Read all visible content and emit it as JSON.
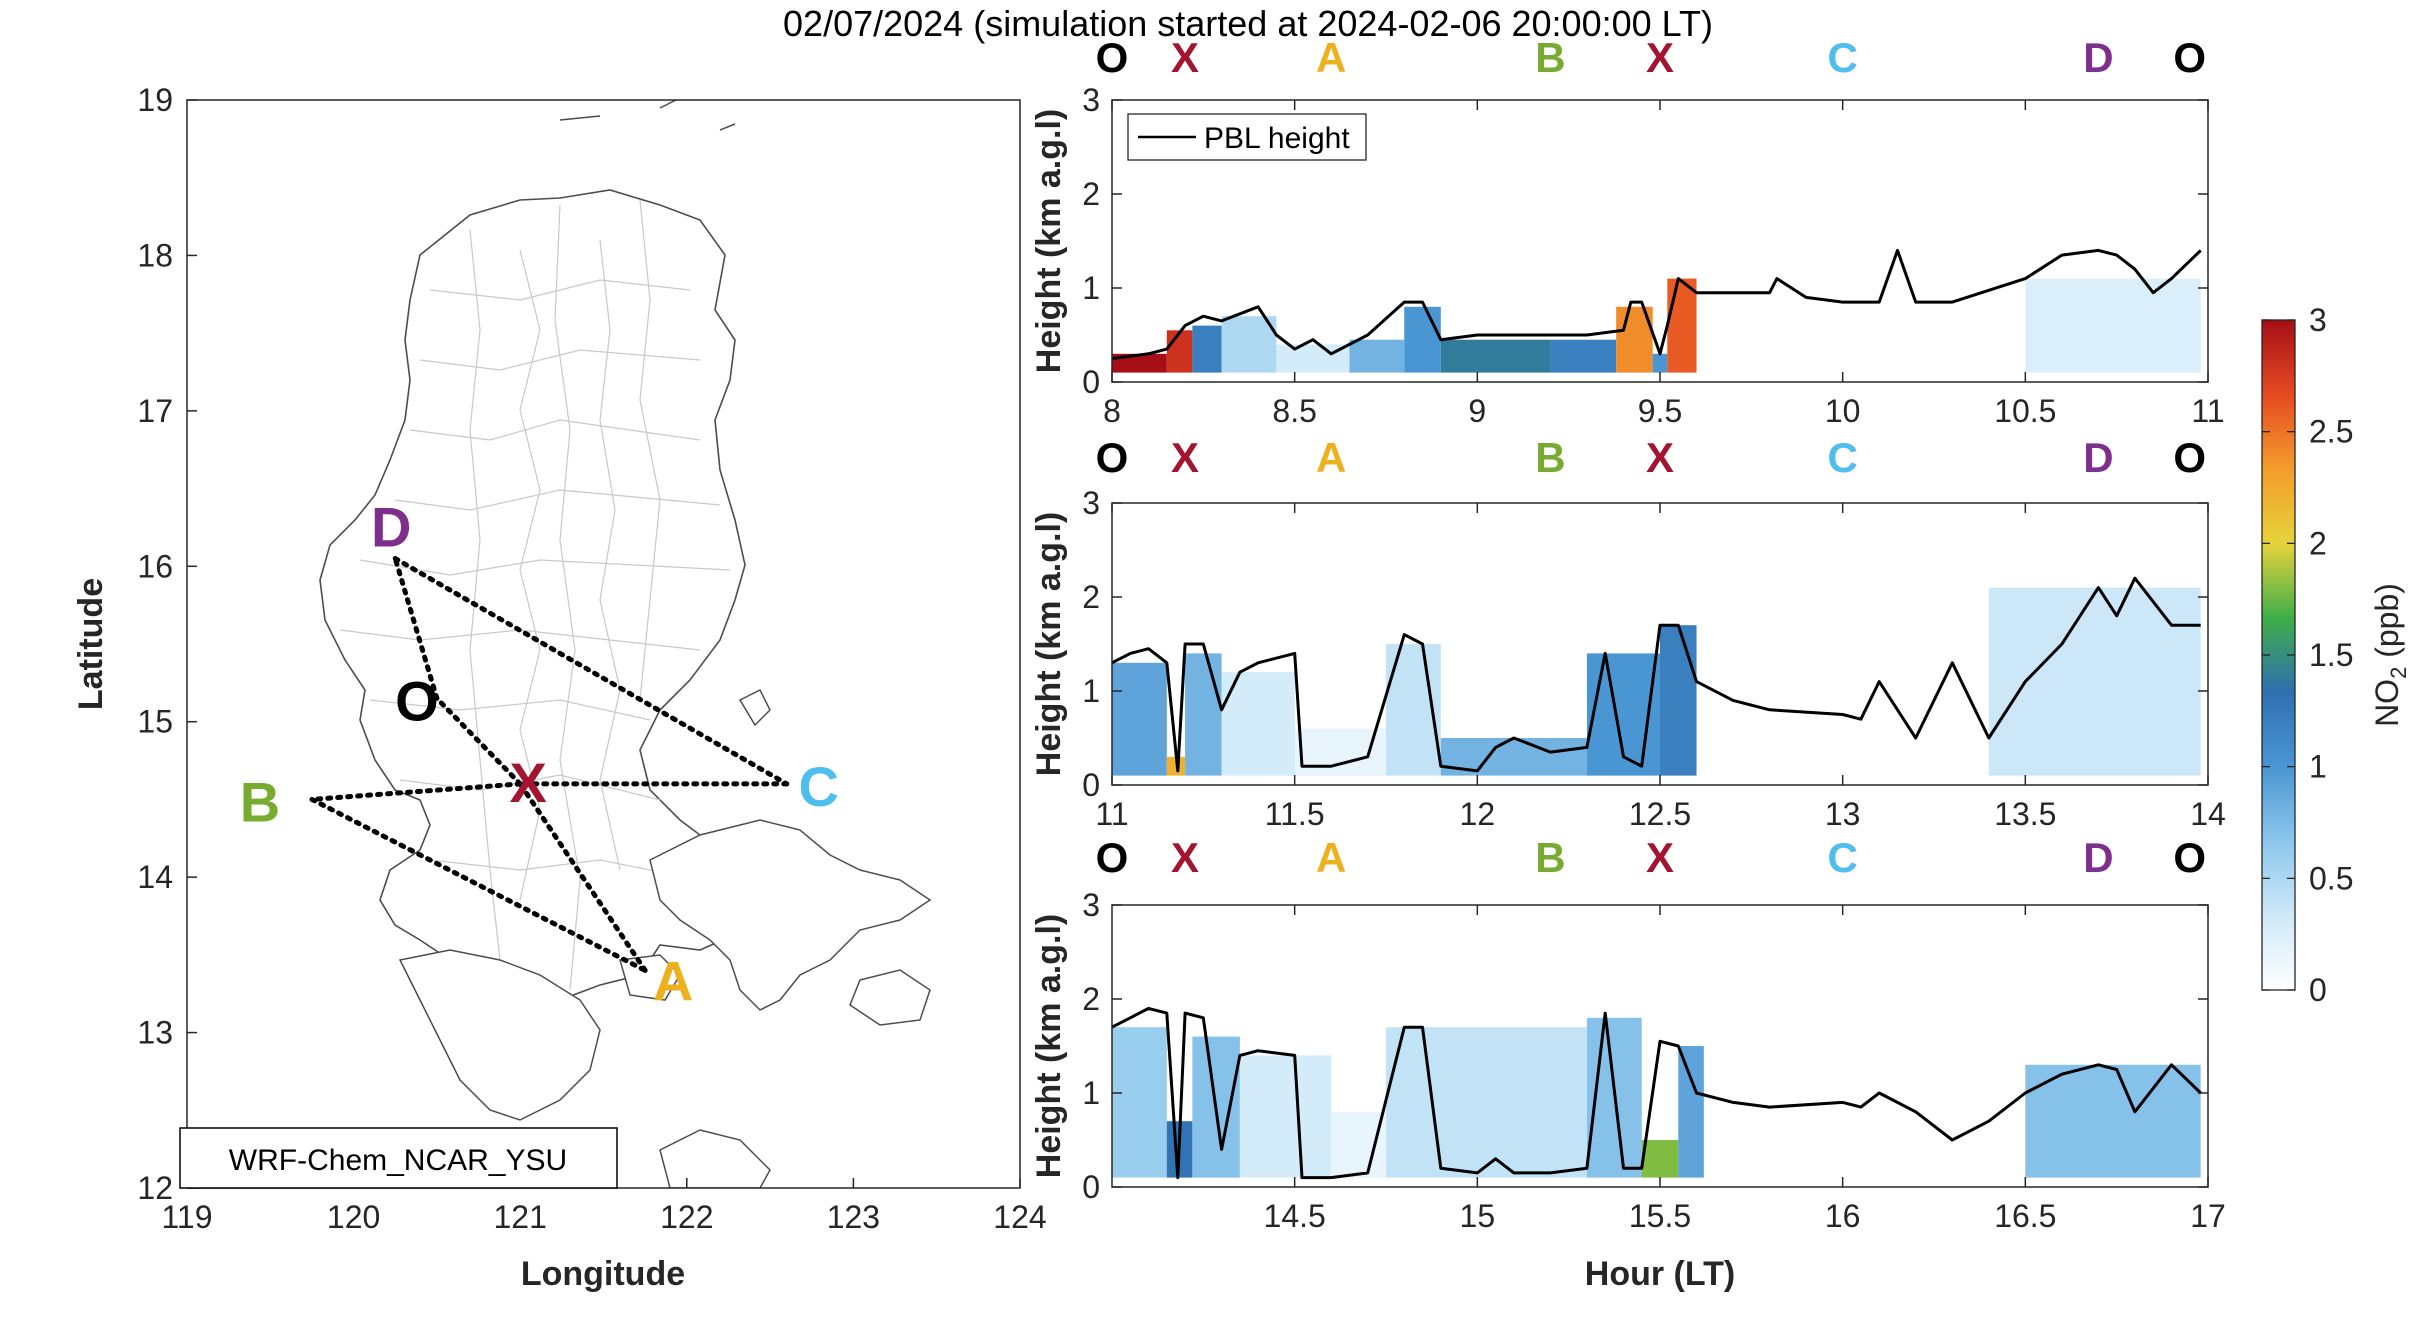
{
  "figure": {
    "title": "02/07/2024 (simulation started at 2024-02-06 20:00:00 LT)"
  },
  "colors": {
    "X": "#a2142f",
    "A": "#edb120",
    "B": "#77ac30",
    "C": "#4dbeee",
    "D": "#7e2f8e",
    "O": "#000000",
    "pbl": "#000000",
    "land_border": "#bfbfbf",
    "route": "#000000"
  },
  "map": {
    "xlabel": "Longitude",
    "ylabel": "Latitude",
    "xlim": [
      119,
      124
    ],
    "ylim": [
      12,
      19
    ],
    "xticks": [
      "119",
      "120",
      "121",
      "122",
      "123",
      "124"
    ],
    "yticks": [
      "12",
      "13",
      "14",
      "15",
      "16",
      "17",
      "18",
      "19"
    ],
    "model_label": "WRF-Chem_NCAR_YSU",
    "sites": [
      {
        "id": "D",
        "label": "D",
        "lon": 120.25,
        "lat": 16.05
      },
      {
        "id": "O",
        "label": "O",
        "lon": 120.5,
        "lat": 15.15
      },
      {
        "id": "X",
        "label": "X",
        "lon": 121.0,
        "lat": 14.6
      },
      {
        "id": "C",
        "label": "C",
        "lon": 122.6,
        "lat": 14.6
      },
      {
        "id": "B",
        "label": "B",
        "lon": 119.75,
        "lat": 14.5
      },
      {
        "id": "A",
        "label": "A",
        "lon": 121.75,
        "lat": 13.4
      }
    ],
    "route": [
      "D",
      "C",
      "X",
      "B",
      "A",
      "X",
      "O",
      "D"
    ]
  },
  "chart_data": [
    {
      "type": "heatmap",
      "title": "",
      "xlabel": "",
      "ylabel": "Height (km a.g.l)",
      "xlim": [
        8,
        11
      ],
      "ylim": [
        0,
        3
      ],
      "xticks": [
        "8",
        "8.5",
        "9",
        "9.5",
        "10",
        "10.5",
        "11"
      ],
      "yticks": [
        "0",
        "1",
        "2",
        "3"
      ],
      "legend": {
        "entries": [
          "PBL height"
        ],
        "placement": "top-left"
      },
      "segment_markers": [
        {
          "label": "O",
          "x": 8.0
        },
        {
          "label": "X",
          "x": 8.2
        },
        {
          "label": "A",
          "x": 8.6
        },
        {
          "label": "B",
          "x": 9.2
        },
        {
          "label": "X",
          "x": 9.5
        },
        {
          "label": "C",
          "x": 10.0
        },
        {
          "label": "D",
          "x": 10.7
        },
        {
          "label": "O",
          "x": 10.95
        }
      ],
      "series": [
        {
          "name": "PBL height",
          "x": [
            8.0,
            8.1,
            8.15,
            8.2,
            8.25,
            8.3,
            8.4,
            8.45,
            8.5,
            8.55,
            8.6,
            8.7,
            8.8,
            8.85,
            8.9,
            9.0,
            9.1,
            9.2,
            9.3,
            9.4,
            9.42,
            9.45,
            9.5,
            9.52,
            9.55,
            9.6,
            9.7,
            9.8,
            9.82,
            9.9,
            10.0,
            10.1,
            10.15,
            10.2,
            10.3,
            10.5,
            10.6,
            10.7,
            10.75,
            10.8,
            10.85,
            10.9,
            10.98
          ],
          "y": [
            0.25,
            0.3,
            0.35,
            0.6,
            0.7,
            0.65,
            0.8,
            0.5,
            0.35,
            0.45,
            0.3,
            0.5,
            0.85,
            0.85,
            0.45,
            0.5,
            0.5,
            0.5,
            0.5,
            0.55,
            0.85,
            0.85,
            0.3,
            0.6,
            1.1,
            0.95,
            0.95,
            0.95,
            1.1,
            0.9,
            0.85,
            0.85,
            1.4,
            0.85,
            0.85,
            1.1,
            1.35,
            1.4,
            1.35,
            1.2,
            0.95,
            1.1,
            1.4
          ]
        }
      ],
      "no2_blocks": [
        {
          "x0": 8.0,
          "x1": 8.15,
          "y0": 0.1,
          "y1": 0.3,
          "v": 3.0
        },
        {
          "x0": 8.15,
          "x1": 8.22,
          "y0": 0.1,
          "y1": 0.55,
          "v": 2.8
        },
        {
          "x0": 8.22,
          "x1": 8.3,
          "y0": 0.1,
          "y1": 0.6,
          "v": 1.2
        },
        {
          "x0": 8.3,
          "x1": 8.45,
          "y0": 0.1,
          "y1": 0.7,
          "v": 0.5
        },
        {
          "x0": 8.45,
          "x1": 8.65,
          "y0": 0.1,
          "y1": 0.4,
          "v": 0.3
        },
        {
          "x0": 8.65,
          "x1": 8.8,
          "y0": 0.1,
          "y1": 0.45,
          "v": 0.8
        },
        {
          "x0": 8.8,
          "x1": 8.9,
          "y0": 0.1,
          "y1": 0.8,
          "v": 1.0
        },
        {
          "x0": 8.9,
          "x1": 9.2,
          "y0": 0.1,
          "y1": 0.45,
          "v": 1.4
        },
        {
          "x0": 9.2,
          "x1": 9.38,
          "y0": 0.1,
          "y1": 0.45,
          "v": 1.2
        },
        {
          "x0": 9.38,
          "x1": 9.48,
          "y0": 0.1,
          "y1": 0.8,
          "v": 2.4
        },
        {
          "x0": 9.48,
          "x1": 9.52,
          "y0": 0.1,
          "y1": 0.3,
          "v": 1.0
        },
        {
          "x0": 9.52,
          "x1": 9.6,
          "y0": 0.1,
          "y1": 1.1,
          "v": 2.6
        },
        {
          "x0": 10.5,
          "x1": 10.98,
          "y0": 0.1,
          "y1": 1.1,
          "v": 0.25
        }
      ]
    },
    {
      "type": "heatmap",
      "title": "",
      "xlabel": "",
      "ylabel": "Height (km a.g.l)",
      "xlim": [
        11,
        14
      ],
      "ylim": [
        0,
        3
      ],
      "xticks": [
        "11",
        "11.5",
        "12",
        "12.5",
        "13",
        "13.5",
        "14"
      ],
      "yticks": [
        "0",
        "1",
        "2",
        "3"
      ],
      "segment_markers": [
        {
          "label": "O",
          "x": 11.0
        },
        {
          "label": "X",
          "x": 11.2
        },
        {
          "label": "A",
          "x": 11.6
        },
        {
          "label": "B",
          "x": 12.2
        },
        {
          "label": "X",
          "x": 12.5
        },
        {
          "label": "C",
          "x": 13.0
        },
        {
          "label": "D",
          "x": 13.7
        },
        {
          "label": "O",
          "x": 13.95
        }
      ],
      "series": [
        {
          "name": "PBL height",
          "x": [
            11.0,
            11.05,
            11.1,
            11.15,
            11.18,
            11.2,
            11.25,
            11.3,
            11.35,
            11.4,
            11.5,
            11.52,
            11.6,
            11.7,
            11.8,
            11.85,
            11.9,
            12.0,
            12.05,
            12.1,
            12.2,
            12.3,
            12.35,
            12.4,
            12.45,
            12.5,
            12.55,
            12.6,
            12.7,
            12.8,
            13.0,
            13.05,
            13.1,
            13.2,
            13.3,
            13.4,
            13.5,
            13.6,
            13.7,
            13.75,
            13.8,
            13.9,
            13.98
          ],
          "y": [
            1.3,
            1.4,
            1.45,
            1.3,
            0.15,
            1.5,
            1.5,
            0.8,
            1.2,
            1.3,
            1.4,
            0.2,
            0.2,
            0.3,
            1.6,
            1.5,
            0.2,
            0.15,
            0.4,
            0.5,
            0.35,
            0.4,
            1.4,
            0.3,
            0.2,
            1.7,
            1.7,
            1.1,
            0.9,
            0.8,
            0.75,
            0.7,
            1.1,
            0.5,
            1.3,
            0.5,
            1.1,
            1.5,
            2.1,
            1.8,
            2.2,
            1.7,
            1.7
          ]
        }
      ],
      "no2_blocks": [
        {
          "x0": 11.0,
          "x1": 11.15,
          "y0": 0.1,
          "y1": 1.3,
          "v": 0.9
        },
        {
          "x0": 11.15,
          "x1": 11.2,
          "y0": 0.1,
          "y1": 0.3,
          "v": 2.2
        },
        {
          "x0": 11.2,
          "x1": 11.3,
          "y0": 0.1,
          "y1": 1.4,
          "v": 0.8
        },
        {
          "x0": 11.3,
          "x1": 11.5,
          "y0": 0.1,
          "y1": 1.2,
          "v": 0.3
        },
        {
          "x0": 11.5,
          "x1": 11.75,
          "y0": 0.1,
          "y1": 0.6,
          "v": 0.15
        },
        {
          "x0": 11.75,
          "x1": 11.9,
          "y0": 0.1,
          "y1": 1.5,
          "v": 0.4
        },
        {
          "x0": 11.9,
          "x1": 12.3,
          "y0": 0.1,
          "y1": 0.5,
          "v": 0.8
        },
        {
          "x0": 12.3,
          "x1": 12.5,
          "y0": 0.1,
          "y1": 1.4,
          "v": 1.0
        },
        {
          "x0": 12.5,
          "x1": 12.6,
          "y0": 0.1,
          "y1": 1.7,
          "v": 1.2
        },
        {
          "x0": 13.4,
          "x1": 13.98,
          "y0": 0.1,
          "y1": 2.1,
          "v": 0.35
        }
      ]
    },
    {
      "type": "heatmap",
      "title": "",
      "xlabel": "Hour (LT)",
      "ylabel": "Height (km a.g.l)",
      "xlim": [
        14,
        17
      ],
      "ylim": [
        0,
        3
      ],
      "xticks": [
        "14.5",
        "15",
        "15.5",
        "16",
        "16.5",
        "17"
      ],
      "yticks": [
        "0",
        "1",
        "2",
        "3"
      ],
      "segment_markers": [
        {
          "label": "O",
          "x": 14.0
        },
        {
          "label": "X",
          "x": 14.2
        },
        {
          "label": "A",
          "x": 14.6
        },
        {
          "label": "B",
          "x": 15.2
        },
        {
          "label": "X",
          "x": 15.5
        },
        {
          "label": "C",
          "x": 16.0
        },
        {
          "label": "D",
          "x": 16.7
        },
        {
          "label": "O",
          "x": 16.95
        }
      ],
      "series": [
        {
          "name": "PBL height",
          "x": [
            14.0,
            14.05,
            14.1,
            14.15,
            14.18,
            14.2,
            14.25,
            14.3,
            14.35,
            14.4,
            14.5,
            14.52,
            14.6,
            14.7,
            14.8,
            14.85,
            14.9,
            15.0,
            15.05,
            15.1,
            15.2,
            15.3,
            15.35,
            15.4,
            15.45,
            15.5,
            15.55,
            15.6,
            15.7,
            15.8,
            16.0,
            16.05,
            16.1,
            16.2,
            16.3,
            16.4,
            16.5,
            16.6,
            16.7,
            16.75,
            16.8,
            16.9,
            16.98
          ],
          "y": [
            1.7,
            1.8,
            1.9,
            1.85,
            0.1,
            1.85,
            1.8,
            0.4,
            1.4,
            1.45,
            1.4,
            0.1,
            0.1,
            0.15,
            1.7,
            1.7,
            0.2,
            0.15,
            0.3,
            0.15,
            0.15,
            0.2,
            1.85,
            0.2,
            0.2,
            1.55,
            1.5,
            1.0,
            0.9,
            0.85,
            0.9,
            0.85,
            1.0,
            0.8,
            0.5,
            0.7,
            1.0,
            1.2,
            1.3,
            1.25,
            0.8,
            1.3,
            1.0
          ]
        }
      ],
      "no2_blocks": [
        {
          "x0": 14.0,
          "x1": 14.15,
          "y0": 0.1,
          "y1": 1.7,
          "v": 0.6
        },
        {
          "x0": 14.15,
          "x1": 14.22,
          "y0": 0.1,
          "y1": 0.7,
          "v": 1.3
        },
        {
          "x0": 14.22,
          "x1": 14.35,
          "y0": 0.1,
          "y1": 1.6,
          "v": 0.7
        },
        {
          "x0": 14.35,
          "x1": 14.6,
          "y0": 0.1,
          "y1": 1.4,
          "v": 0.3
        },
        {
          "x0": 14.6,
          "x1": 14.75,
          "y0": 0.1,
          "y1": 0.8,
          "v": 0.15
        },
        {
          "x0": 14.75,
          "x1": 15.3,
          "y0": 0.1,
          "y1": 1.7,
          "v": 0.4
        },
        {
          "x0": 15.3,
          "x1": 15.45,
          "y0": 0.1,
          "y1": 1.8,
          "v": 0.7
        },
        {
          "x0": 15.45,
          "x1": 15.55,
          "y0": 0.1,
          "y1": 0.5,
          "v": 1.8
        },
        {
          "x0": 15.55,
          "x1": 15.62,
          "y0": 0.1,
          "y1": 1.5,
          "v": 0.9
        },
        {
          "x0": 16.5,
          "x1": 16.98,
          "y0": 0.1,
          "y1": 1.3,
          "v": 0.7
        }
      ]
    }
  ],
  "colorbar": {
    "label_main": "NO",
    "label_sub": "2",
    "label_unit": " (ppb)",
    "lim": [
      0,
      3
    ],
    "ticks": [
      "0",
      "0.5",
      "1",
      "1.5",
      "2",
      "2.5",
      "3"
    ],
    "colormap": [
      "#ffffff",
      "#cfe9f8",
      "#8cc6ec",
      "#4a96d2",
      "#2f6fb0",
      "#3fae49",
      "#e6d33a",
      "#f39c2b",
      "#e64a22",
      "#a50f15"
    ]
  }
}
